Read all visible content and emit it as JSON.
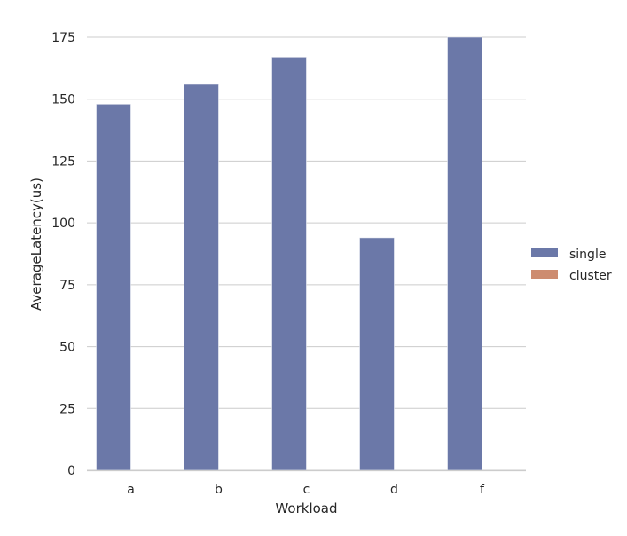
{
  "chart_data": {
    "type": "bar",
    "xlabel": "Workload",
    "ylabel": "AverageLatency(us)",
    "categories": [
      "a",
      "b",
      "c",
      "d",
      "f"
    ],
    "series": [
      {
        "name": "single",
        "values": [
          148,
          156,
          167,
          94,
          175
        ],
        "color": "#6b78a8"
      },
      {
        "name": "cluster",
        "values": [
          0,
          0,
          0,
          0,
          0
        ],
        "color": "#cd8c70"
      }
    ],
    "ylim": [
      0,
      175
    ],
    "yticks": [
      0,
      25,
      50,
      75,
      100,
      125,
      150,
      175
    ],
    "grid": true,
    "legend": "right"
  }
}
